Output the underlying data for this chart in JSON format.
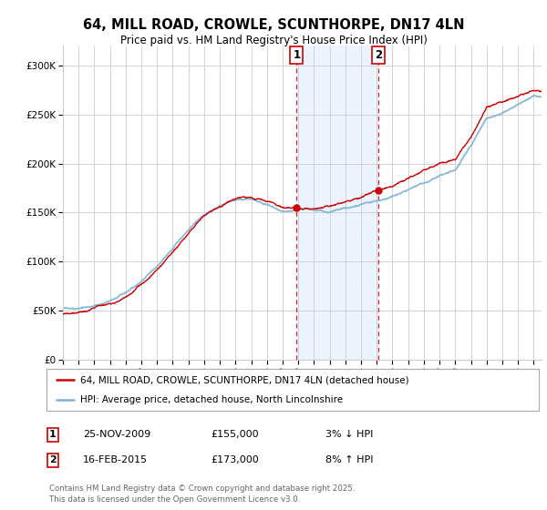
{
  "title": "64, MILL ROAD, CROWLE, SCUNTHORPE, DN17 4LN",
  "subtitle": "Price paid vs. HM Land Registry's House Price Index (HPI)",
  "ylim": [
    0,
    320000
  ],
  "yticks": [
    0,
    50000,
    100000,
    150000,
    200000,
    250000,
    300000
  ],
  "ytick_labels": [
    "£0",
    "£50K",
    "£100K",
    "£150K",
    "£200K",
    "£250K",
    "£300K"
  ],
  "xstart_year": 1995,
  "xend_year": 2025,
  "hpi_color": "#7fb3d3",
  "price_color": "#cc0000",
  "sale1_date": 2009.9,
  "sale1_price": 155000,
  "sale1_label": "1",
  "sale2_date": 2015.12,
  "sale2_price": 173000,
  "sale2_label": "2",
  "legend_line1": "64, MILL ROAD, CROWLE, SCUNTHORPE, DN17 4LN (detached house)",
  "legend_line2": "HPI: Average price, detached house, North Lincolnshire",
  "annotation1_date": "25-NOV-2009",
  "annotation1_price": "£155,000",
  "annotation1_note": "3% ↓ HPI",
  "annotation2_date": "16-FEB-2015",
  "annotation2_price": "£173,000",
  "annotation2_note": "8% ↑ HPI",
  "footer": "Contains HM Land Registry data © Crown copyright and database right 2025.\nThis data is licensed under the Open Government Licence v3.0.",
  "bg_color": "#ffffff",
  "grid_color": "#cccccc",
  "shade_color": "#ddeeff"
}
